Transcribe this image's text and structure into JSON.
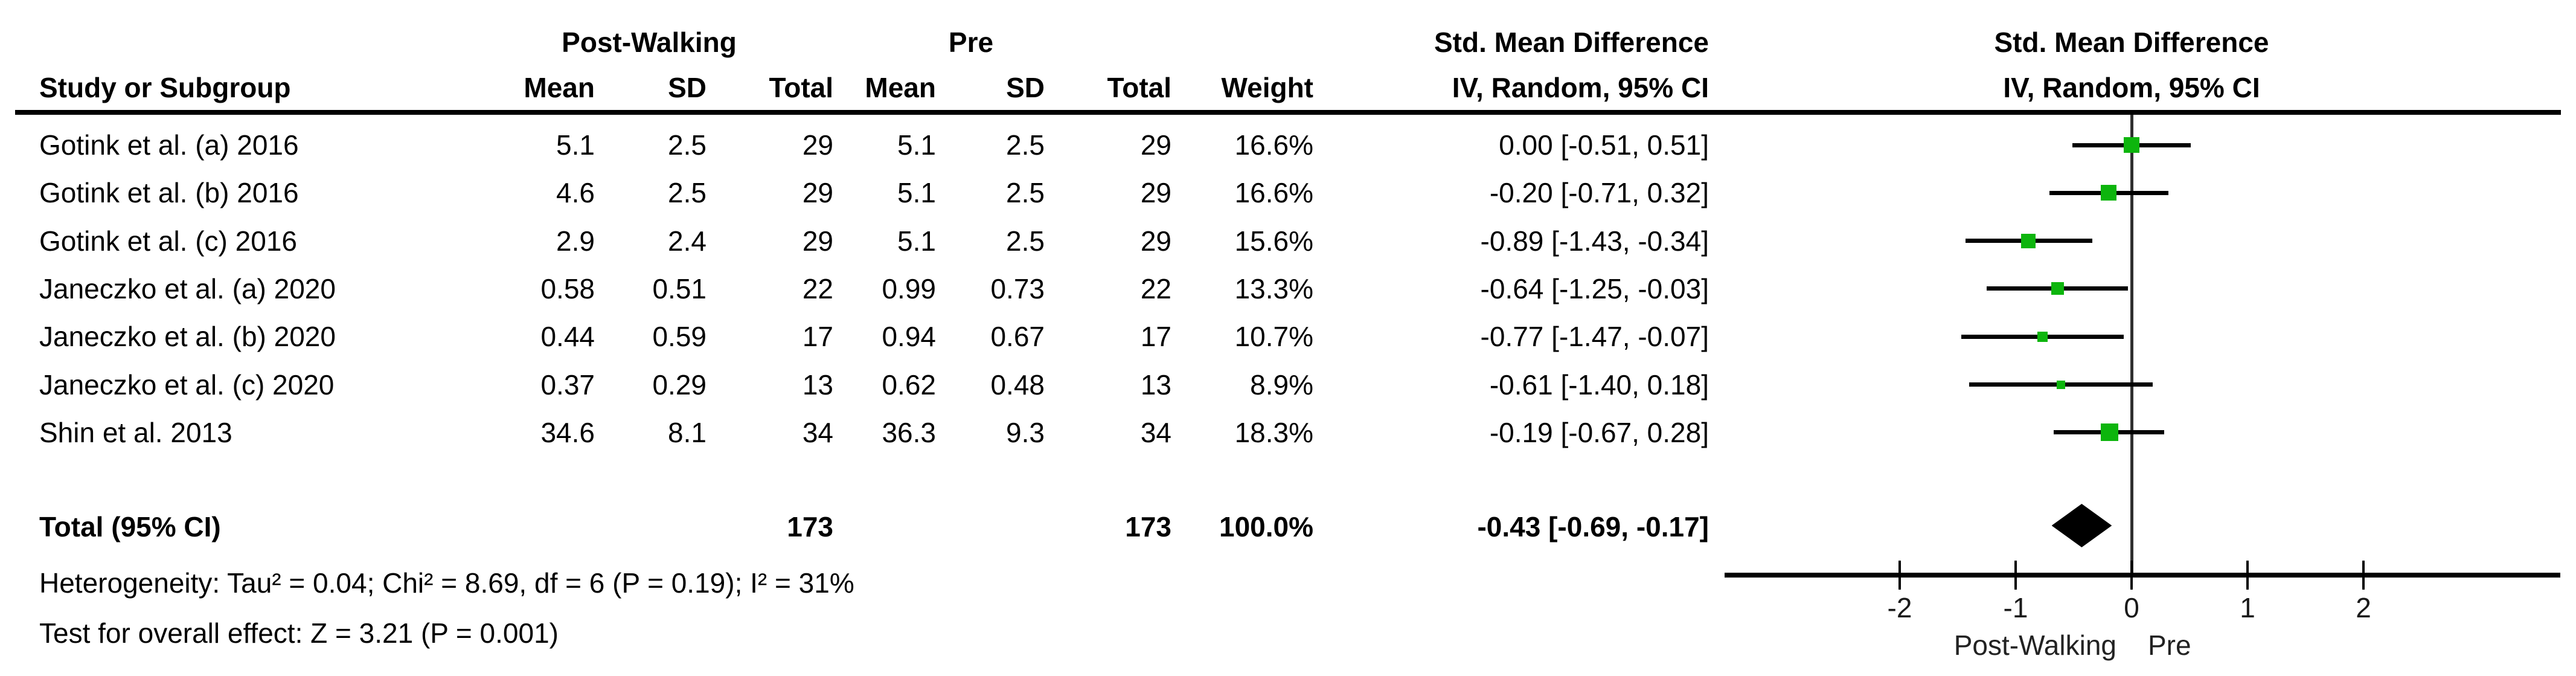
{
  "header": {
    "group_post": "Post-Walking",
    "group_pre": "Pre",
    "smd_text_title": "Std. Mean Difference",
    "smd_text_sub": "IV, Random, 95% CI",
    "plot_title": "Std. Mean Difference",
    "plot_sub": "IV, Random, 95% CI",
    "col_study": "Study or Subgroup",
    "col_mean1": "Mean",
    "col_sd1": "SD",
    "col_total1": "Total",
    "col_mean2": "Mean",
    "col_sd2": "SD",
    "col_total2": "Total",
    "col_weight": "Weight"
  },
  "rows": [
    {
      "study": "Gotink et al. (a) 2016",
      "post_mean": "5.1",
      "post_sd": "2.5",
      "post_total": "29",
      "pre_mean": "5.1",
      "pre_sd": "2.5",
      "pre_total": "29",
      "weight": "16.6%",
      "ci": "0.00 [-0.51, 0.51]"
    },
    {
      "study": "Gotink et al. (b) 2016",
      "post_mean": "4.6",
      "post_sd": "2.5",
      "post_total": "29",
      "pre_mean": "5.1",
      "pre_sd": "2.5",
      "pre_total": "29",
      "weight": "16.6%",
      "ci": "-0.20 [-0.71, 0.32]"
    },
    {
      "study": "Gotink et al. (c) 2016",
      "post_mean": "2.9",
      "post_sd": "2.4",
      "post_total": "29",
      "pre_mean": "5.1",
      "pre_sd": "2.5",
      "pre_total": "29",
      "weight": "15.6%",
      "ci": "-0.89 [-1.43, -0.34]"
    },
    {
      "study": "Janeczko et al. (a) 2020",
      "post_mean": "0.58",
      "post_sd": "0.51",
      "post_total": "22",
      "pre_mean": "0.99",
      "pre_sd": "0.73",
      "pre_total": "22",
      "weight": "13.3%",
      "ci": "-0.64 [-1.25, -0.03]"
    },
    {
      "study": "Janeczko et al. (b) 2020",
      "post_mean": "0.44",
      "post_sd": "0.59",
      "post_total": "17",
      "pre_mean": "0.94",
      "pre_sd": "0.67",
      "pre_total": "17",
      "weight": "10.7%",
      "ci": "-0.77 [-1.47, -0.07]"
    },
    {
      "study": "Janeczko et al. (c) 2020",
      "post_mean": "0.37",
      "post_sd": "0.29",
      "post_total": "13",
      "pre_mean": "0.62",
      "pre_sd": "0.48",
      "pre_total": "13",
      "weight": "8.9%",
      "ci": "-0.61 [-1.40, 0.18]"
    },
    {
      "study": "Shin et al. 2013",
      "post_mean": "34.6",
      "post_sd": "8.1",
      "post_total": "34",
      "pre_mean": "36.3",
      "pre_sd": "9.3",
      "pre_total": "34",
      "weight": "18.3%",
      "ci": "-0.19 [-0.67, 0.28]"
    }
  ],
  "total_row": {
    "label": "Total (95% CI)",
    "post_total": "173",
    "pre_total": "173",
    "weight": "100.0%",
    "ci": "-0.43 [-0.69, -0.17]"
  },
  "footnotes": {
    "heterogeneity": "Heterogeneity: Tau² = 0.04; Chi² = 8.69, df = 6 (P = 0.19); I² = 31%",
    "overall_effect": "Test for overall effect: Z = 3.21 (P = 0.001)"
  },
  "axis": {
    "left_label": "Post-Walking",
    "right_label": "Pre"
  },
  "chart_data": {
    "type": "forest",
    "effect_measure": "Std. Mean Difference",
    "method": "IV, Random, 95% CI",
    "studies": [
      "Gotink et al. (a) 2016",
      "Gotink et al. (b) 2016",
      "Gotink et al. (c) 2016",
      "Janeczko et al. (a) 2020",
      "Janeczko et al. (b) 2020",
      "Janeczko et al. (c) 2020",
      "Shin et al. 2013"
    ],
    "smd": [
      0.0,
      -0.2,
      -0.89,
      -0.64,
      -0.77,
      -0.61,
      -0.19
    ],
    "ci_low": [
      -0.51,
      -0.71,
      -1.43,
      -1.25,
      -1.47,
      -1.4,
      -0.67
    ],
    "ci_high": [
      0.51,
      0.32,
      -0.34,
      -0.03,
      -0.07,
      0.18,
      0.28
    ],
    "weights_pct": [
      16.6,
      16.6,
      15.6,
      13.3,
      10.7,
      8.9,
      18.3
    ],
    "post_totals": [
      29,
      29,
      29,
      22,
      17,
      13,
      34
    ],
    "pre_totals": [
      29,
      29,
      29,
      22,
      17,
      13,
      34
    ],
    "total": {
      "n_post": 173,
      "n_pre": 173,
      "smd": -0.43,
      "ci_low": -0.69,
      "ci_high": -0.17
    },
    "heterogeneity": {
      "tau2": 0.04,
      "chi2": 8.69,
      "df": 6,
      "p": 0.19,
      "i2_pct": 31
    },
    "overall_effect": {
      "z": 3.21,
      "p": 0.001
    },
    "x_ticks": [
      -2,
      -1,
      0,
      1,
      2
    ],
    "xlim": [
      -3.5,
      3.7
    ],
    "x_left_label": "Post-Walking",
    "x_right_label": "Pre",
    "marker_color": "#0db50d",
    "line_color": "#000000"
  }
}
